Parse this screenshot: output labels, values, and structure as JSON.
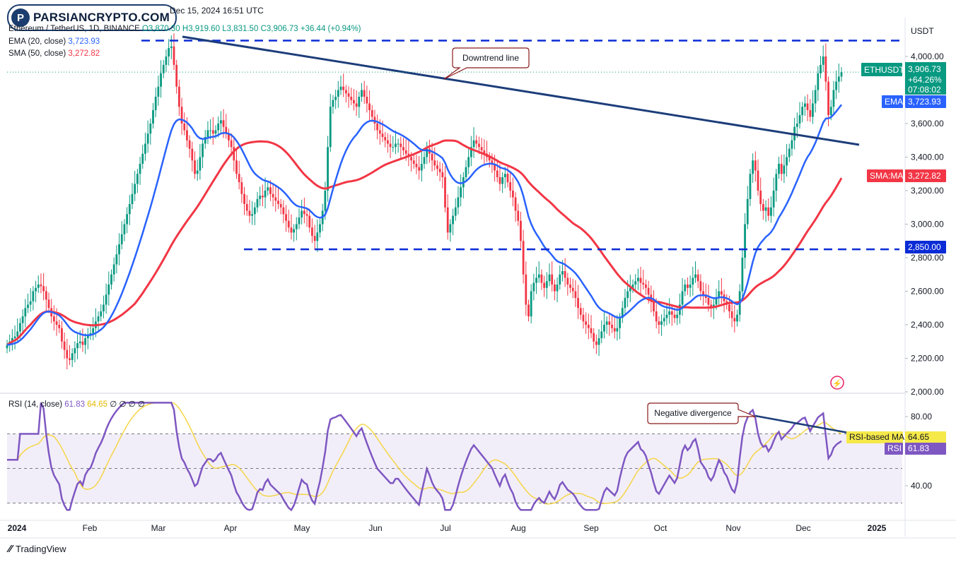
{
  "header": {
    "brand": "PARSIANCRYPTO.COM",
    "published": "Dec 15, 2024 16:51 UTC",
    "symbol_line": "Ethereum / TetherUS, 1D, BINANCE",
    "open": "O3,870.30",
    "high": "H3,919.60",
    "low": "L3,831.50",
    "close": "C3,906.73",
    "change": "+36.44 (+0.94%)",
    "ema_label": "EMA (20, close)",
    "ema_value": "3,723.93",
    "sma_label": "SMA (50, close)",
    "sma_value": "3,272.82",
    "rsi_label": "RSI (14, close)",
    "rsi_value": "61.83",
    "rsi_ma_value": "64.65",
    "rsi_extra": "∅ ∅ ∅ ∅"
  },
  "footer": {
    "tradingview": "TradingView"
  },
  "colors": {
    "up": "#089981",
    "down": "#f23645",
    "ema": "#2962ff",
    "sma": "#f23645",
    "trend": "#1c3d7a",
    "rsi": "#7e57c2",
    "rsi_ma": "#f5d547"
  },
  "chart_data": [
    {
      "type": "candlestick",
      "title": "Ethereum / TetherUS, 1D, BINANCE",
      "currency": "USDT",
      "x_ticks": [
        "2024",
        "Feb",
        "Mar",
        "Apr",
        "May",
        "Jun",
        "Jul",
        "Aug",
        "Sep",
        "Oct",
        "Nov",
        "Dec",
        "2025"
      ],
      "y_ticks": [
        "2,000.00",
        "2,200.00",
        "2,400.00",
        "2,600.00",
        "2,800.00",
        "3,000.00",
        "3,200.00",
        "3,400.00",
        "3,600.00",
        "4,000.00"
      ],
      "ylim": [
        2000,
        4100
      ],
      "last_price": {
        "label": "ETHUSDT",
        "value": "3,906.73",
        "change": "+64.26%",
        "countdown": "07:08:02"
      },
      "ema_tag": {
        "label": "EMA",
        "value": "3,723.93"
      },
      "sma_tag": {
        "label": "SMA:MA",
        "value": "3,272.82"
      },
      "support_tag": "2,850.00",
      "levels": {
        "resistance": 4095,
        "support": 2850
      },
      "annotations": [
        "Downtrend line"
      ],
      "closes": [
        2280,
        2300,
        2320,
        2330,
        2360,
        2410,
        2450,
        2500,
        2520,
        2540,
        2600,
        2620,
        2640,
        2630,
        2600,
        2550,
        2500,
        2450,
        2420,
        2400,
        2380,
        2300,
        2250,
        2200,
        2190,
        2230,
        2260,
        2290,
        2300,
        2280,
        2320,
        2340,
        2350,
        2380,
        2420,
        2450,
        2480,
        2520,
        2580,
        2640,
        2700,
        2760,
        2820,
        2880,
        2940,
        3000,
        3060,
        3120,
        3180,
        3240,
        3300,
        3360,
        3420,
        3480,
        3540,
        3600,
        3680,
        3760,
        3820,
        3900,
        3950,
        4000,
        4050,
        4060,
        3950,
        3820,
        3700,
        3600,
        3560,
        3500,
        3450,
        3380,
        3300,
        3320,
        3400,
        3480,
        3520,
        3560,
        3560,
        3540,
        3560,
        3600,
        3620,
        3580,
        3540,
        3500,
        3460,
        3380,
        3300,
        3250,
        3180,
        3120,
        3080,
        3050,
        3060,
        3100,
        3150,
        3170,
        3160,
        3200,
        3220,
        3180,
        3160,
        3140,
        3120,
        3100,
        3060,
        3020,
        2980,
        2950,
        2970,
        3000,
        3040,
        3080,
        3060,
        3050,
        2980,
        2930,
        2900,
        2950,
        3000,
        3080,
        3200,
        3460,
        3700,
        3740,
        3760,
        3800,
        3820,
        3800,
        3780,
        3760,
        3740,
        3720,
        3700,
        3760,
        3800,
        3760,
        3720,
        3680,
        3640,
        3600,
        3560,
        3540,
        3520,
        3500,
        3480,
        3460,
        3460,
        3480,
        3480,
        3460,
        3440,
        3420,
        3400,
        3380,
        3360,
        3340,
        3320,
        3360,
        3400,
        3450,
        3420,
        3380,
        3350,
        3330,
        3310,
        3280,
        3100,
        2950,
        3000,
        3050,
        3100,
        3160,
        3220,
        3280,
        3340,
        3400,
        3460,
        3500,
        3480,
        3460,
        3440,
        3420,
        3400,
        3380,
        3360,
        3320,
        3280,
        3240,
        3280,
        3300,
        3250,
        3200,
        3160,
        3080,
        3020,
        2900,
        2700,
        2520,
        2450,
        2600,
        2650,
        2680,
        2700,
        2650,
        2620,
        2660,
        2700,
        2640,
        2600,
        2640,
        2700,
        2720,
        2680,
        2640,
        2620,
        2600,
        2560,
        2500,
        2460,
        2420,
        2400,
        2380,
        2350,
        2300,
        2280,
        2320,
        2360,
        2400,
        2420,
        2400,
        2380,
        2360,
        2380,
        2440,
        2500,
        2560,
        2600,
        2620,
        2640,
        2660,
        2680,
        2650,
        2640,
        2620,
        2580,
        2540,
        2480,
        2420,
        2400,
        2420,
        2440,
        2460,
        2480,
        2460,
        2440,
        2460,
        2520,
        2600,
        2640,
        2620,
        2640,
        2680,
        2700,
        2660,
        2600,
        2580,
        2560,
        2520,
        2500,
        2520,
        2560,
        2600,
        2580,
        2540,
        2520,
        2480,
        2440,
        2420,
        2460,
        2600,
        2800,
        3000,
        3150,
        3300,
        3380,
        3320,
        3200,
        3120,
        3080,
        3100,
        3050,
        3100,
        3200,
        3300,
        3360,
        3300,
        3350,
        3400,
        3450,
        3500,
        3580,
        3600,
        3650,
        3700,
        3720,
        3680,
        3640,
        3720,
        3800,
        3900,
        3950,
        4000,
        3850,
        3650,
        3700,
        3800,
        3850,
        3880,
        3906.73
      ]
    },
    {
      "type": "line",
      "title": "RSI (14, close)",
      "y_ticks": [
        "40.00",
        "80.00"
      ],
      "ylim": [
        25,
        92
      ],
      "rsi_tag": {
        "label": "RSI",
        "value": "61.83"
      },
      "rsi_ma_tag": {
        "label": "RSI-based MA",
        "value": "64.65"
      },
      "annotations": [
        "Negative divergence"
      ]
    }
  ]
}
